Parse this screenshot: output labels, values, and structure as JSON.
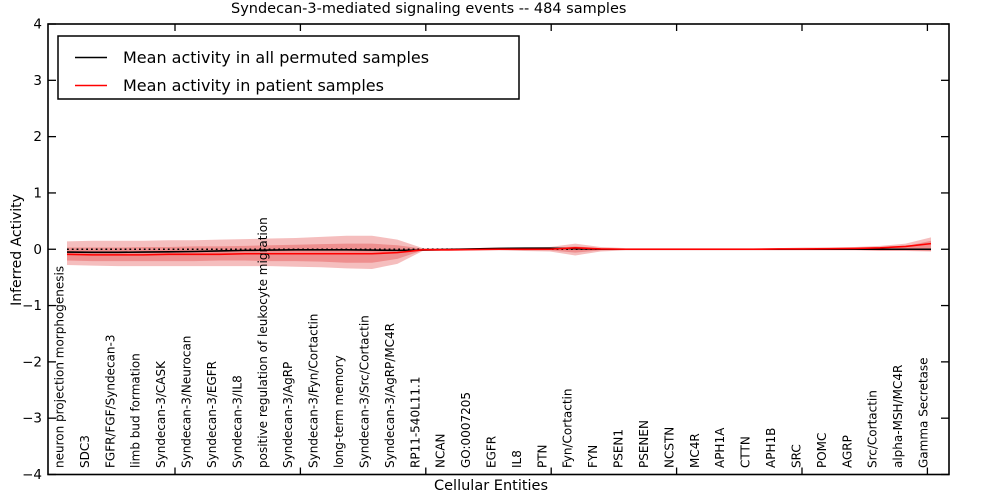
{
  "title": "Syndecan-3-mediated signaling events -- 484 samples",
  "axes": {
    "x_label": "Cellular Entities",
    "y_label": "Inferred Activity",
    "y_ticks": [
      {
        "value": 4,
        "label": "4"
      },
      {
        "value": 3,
        "label": "3"
      },
      {
        "value": 2,
        "label": "2"
      },
      {
        "value": 1,
        "label": "1"
      },
      {
        "value": 0,
        "label": "0"
      },
      {
        "value": -1,
        "label": "−1"
      },
      {
        "value": -2,
        "label": "−2"
      },
      {
        "value": -3,
        "label": "−3"
      },
      {
        "value": -4,
        "label": "−4"
      }
    ],
    "y_lim": [
      -4,
      4
    ]
  },
  "legend": {
    "items": [
      {
        "label": "Mean activity in all permuted samples",
        "color": "#000000"
      },
      {
        "label": "Mean activity in patient samples",
        "color": "#ff0000"
      }
    ]
  },
  "colors": {
    "permuted_line": "#000000",
    "patient_line": "#ff0000",
    "band_fill": "#dc1414",
    "reference_line": "#000000",
    "frame": "#000000"
  },
  "chart_data": {
    "type": "line",
    "title": "Syndecan-3-mediated signaling events -- 484 samples",
    "xlabel": "Cellular Entities",
    "ylabel": "Inferred Activity",
    "ylim": [
      -4,
      4
    ],
    "grid": false,
    "legend_position": "upper left",
    "categories": [
      "neuron projection morphogenesis",
      "SDC3",
      "FGFR/FGF/Syndecan-3",
      "limb bud formation",
      "Syndecan-3/CASK",
      "Syndecan-3/Neurocan",
      "Syndecan-3/EGFR",
      "Syndecan-3/IL8",
      "positive regulation of leukocyte migration",
      "Syndecan-3/AgRP",
      "Syndecan-3/Fyn/Cortactin",
      "long-term memory",
      "Syndecan-3/Src/Cortactin",
      "Syndecan-3/AgRP/MC4R",
      "RP11-540L11.1",
      "NCAN",
      "GO:0007205",
      "EGFR",
      "IL8",
      "PTN",
      "Fyn/Cortactin",
      "FYN",
      "PSEN1",
      "PSENEN",
      "NCSTN",
      "MC4R",
      "APH1A",
      "CTTN",
      "APH1B",
      "SRC",
      "POMC",
      "AGRP",
      "Src/Cortactin",
      "alpha-MSH/MC4R",
      "Gamma Secretase"
    ],
    "series": [
      {
        "name": "Mean activity in all permuted samples",
        "color": "#000000",
        "values": [
          -0.05,
          -0.055,
          -0.055,
          -0.05,
          -0.045,
          -0.04,
          -0.03,
          -0.02,
          -0.015,
          -0.01,
          -0.01,
          -0.01,
          -0.015,
          -0.02,
          -0.015,
          -0.005,
          0.005,
          0.015,
          0.02,
          0.02,
          0.01,
          0.0,
          0.0,
          0.0,
          0.0,
          0.0,
          0.0,
          0.0,
          0.0,
          0.0,
          0.0,
          0.0,
          0.0,
          0.0,
          0.0
        ]
      },
      {
        "name": "Mean activity in patient samples",
        "color": "#ff0000",
        "values": [
          -0.09,
          -0.1,
          -0.1,
          -0.1,
          -0.09,
          -0.09,
          -0.09,
          -0.08,
          -0.08,
          -0.08,
          -0.08,
          -0.08,
          -0.08,
          -0.06,
          -0.01,
          -0.01,
          -0.005,
          0.0,
          0.0,
          0.0,
          0.025,
          0.005,
          0.0,
          0.0,
          0.0,
          0.0,
          0.0,
          0.0,
          0.005,
          0.005,
          0.01,
          0.015,
          0.025,
          0.05,
          0.1
        ]
      }
    ],
    "bands": [
      {
        "name": "patient-outer-confidence-band",
        "upper": [
          0.14,
          0.15,
          0.15,
          0.15,
          0.16,
          0.16,
          0.17,
          0.18,
          0.19,
          0.2,
          0.22,
          0.24,
          0.24,
          0.17,
          0.02,
          0.02,
          0.02,
          0.03,
          0.03,
          0.04,
          0.1,
          0.04,
          0.02,
          0.02,
          0.02,
          0.02,
          0.02,
          0.02,
          0.02,
          0.03,
          0.03,
          0.04,
          0.06,
          0.1,
          0.21
        ],
        "lower": [
          -0.28,
          -0.29,
          -0.3,
          -0.3,
          -0.3,
          -0.3,
          -0.3,
          -0.3,
          -0.3,
          -0.31,
          -0.32,
          -0.34,
          -0.35,
          -0.26,
          -0.03,
          -0.03,
          -0.02,
          -0.02,
          -0.03,
          -0.04,
          -0.11,
          -0.04,
          -0.02,
          -0.02,
          -0.02,
          -0.02,
          -0.02,
          -0.02,
          -0.02,
          -0.02,
          -0.02,
          -0.02,
          -0.03,
          -0.03,
          -0.04
        ]
      },
      {
        "name": "patient-inner-confidence-band",
        "upper": [
          0.03,
          0.03,
          0.03,
          0.04,
          0.04,
          0.05,
          0.05,
          0.06,
          0.07,
          0.08,
          0.09,
          0.1,
          0.1,
          0.07,
          0.01,
          0.01,
          0.01,
          0.01,
          0.02,
          0.02,
          0.05,
          0.02,
          0.01,
          0.01,
          0.01,
          0.01,
          0.01,
          0.01,
          0.01,
          0.01,
          0.01,
          0.02,
          0.03,
          0.05,
          0.15
        ],
        "lower": [
          -0.2,
          -0.21,
          -0.21,
          -0.21,
          -0.21,
          -0.21,
          -0.2,
          -0.2,
          -0.21,
          -0.21,
          -0.22,
          -0.24,
          -0.24,
          -0.17,
          -0.02,
          -0.02,
          -0.01,
          -0.01,
          -0.02,
          -0.02,
          -0.06,
          -0.02,
          -0.01,
          -0.01,
          -0.01,
          -0.01,
          -0.01,
          -0.01,
          -0.01,
          -0.01,
          -0.01,
          -0.01,
          -0.02,
          -0.02,
          -0.03
        ]
      }
    ],
    "reference_line": {
      "y": 0,
      "style": "dotted",
      "color": "#000000"
    }
  }
}
